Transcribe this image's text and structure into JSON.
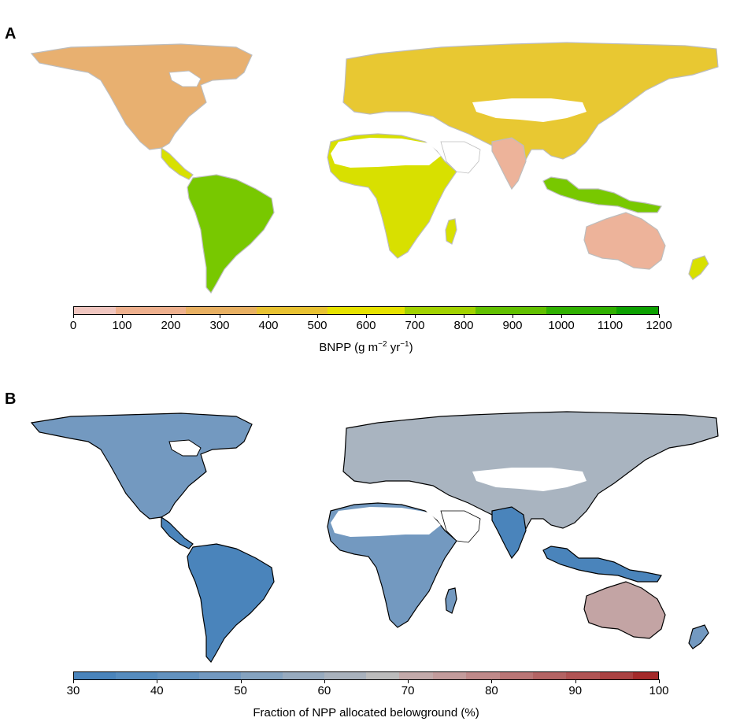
{
  "panels": [
    {
      "id": "A",
      "label": "A",
      "colorbar": {
        "title_main": "BNPP (g  m",
        "title_sup1": "−2",
        "title_mid": " yr",
        "title_sup2": "−1",
        "title_end": ")",
        "min": 0,
        "max": 1200,
        "ticks": [
          "0",
          "100",
          "200",
          "300",
          "400",
          "500",
          "600",
          "700",
          "800",
          "900",
          "1000",
          "1100",
          "1200"
        ],
        "bins": [
          {
            "from": 0,
            "to": 85,
            "color": "#f0c6c0"
          },
          {
            "from": 85,
            "to": 230,
            "color": "#eeb08e"
          },
          {
            "from": 230,
            "to": 375,
            "color": "#e8b062"
          },
          {
            "from": 375,
            "to": 520,
            "color": "#e8c232"
          },
          {
            "from": 520,
            "to": 680,
            "color": "#e6e200"
          },
          {
            "from": 680,
            "to": 825,
            "color": "#a2d200"
          },
          {
            "from": 825,
            "to": 970,
            "color": "#62c000"
          },
          {
            "from": 970,
            "to": 1115,
            "color": "#30b000"
          },
          {
            "from": 1115,
            "to": 1200,
            "color": "#0ca000"
          }
        ]
      },
      "map_colors": {
        "coast": "#bdbdbd",
        "boreal": "#e8b070",
        "temperate": "#e8c832",
        "dry": "#edb39a",
        "humid": "#d8e000",
        "tropical": "#78c800",
        "arid_pink": "#f2cfc8"
      }
    },
    {
      "id": "B",
      "label": "B",
      "colorbar": {
        "title": "Fraction of NPP allocated belowground (%)",
        "min": 30,
        "max": 100,
        "ticks": [
          "30",
          "40",
          "50",
          "60",
          "70",
          "80",
          "90",
          "100"
        ],
        "bins": [
          {
            "from": 30,
            "to": 35,
            "color": "#4a84bb"
          },
          {
            "from": 35,
            "to": 40,
            "color": "#568cbe"
          },
          {
            "from": 40,
            "to": 45,
            "color": "#6392bf"
          },
          {
            "from": 45,
            "to": 50,
            "color": "#7399c0"
          },
          {
            "from": 50,
            "to": 55,
            "color": "#85a3c0"
          },
          {
            "from": 55,
            "to": 60,
            "color": "#98abbf"
          },
          {
            "from": 60,
            "to": 65,
            "color": "#a9b2bd"
          },
          {
            "from": 65,
            "to": 69,
            "color": "#bcbcbc"
          },
          {
            "from": 69,
            "to": 73,
            "color": "#c3aaaa"
          },
          {
            "from": 73,
            "to": 77,
            "color": "#c39c9c"
          },
          {
            "from": 77,
            "to": 81,
            "color": "#bf8a8a"
          },
          {
            "from": 81,
            "to": 85,
            "color": "#ba7676"
          },
          {
            "from": 85,
            "to": 89,
            "color": "#b46464"
          },
          {
            "from": 89,
            "to": 93,
            "color": "#b05454"
          },
          {
            "from": 93,
            "to": 97,
            "color": "#aa4242"
          },
          {
            "from": 97,
            "to": 100,
            "color": "#a42a2a"
          }
        ]
      },
      "map_colors": {
        "coast": "#000000",
        "temperate_blue": "#4a84bb",
        "grey": "#a9b4c0",
        "boreal_red": "#c3a4a4",
        "mid_blue": "#7399c0",
        "arid_red": "#bf8484"
      }
    }
  ]
}
